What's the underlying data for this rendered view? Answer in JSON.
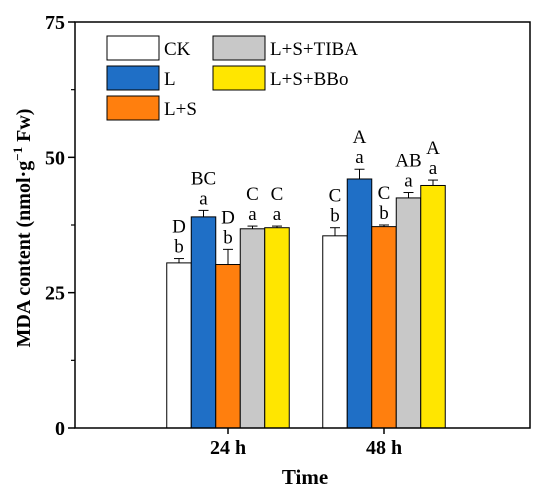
{
  "chart_data": {
    "type": "bar",
    "xlabel": "Time",
    "ylabel": "MDA content (nmol·g",
    "ylabel_sup": "−1",
    "ylabel_suffix": " Fw)",
    "ylim": [
      0,
      75
    ],
    "yticks": [
      0,
      25,
      50,
      75
    ],
    "categories": [
      "24 h",
      "48 h"
    ],
    "legend_position": "top-left",
    "series": [
      {
        "name": "CK",
        "color": "#ffffff",
        "values": [
          30.5,
          35.5
        ],
        "errors": [
          0.8,
          1.5
        ],
        "letters_lower": [
          "b",
          "b"
        ],
        "letters_upper": [
          "D",
          "C"
        ]
      },
      {
        "name": "L",
        "color": "#1f6fc6",
        "values": [
          39.0,
          46.0
        ],
        "errors": [
          1.2,
          1.8
        ],
        "letters_lower": [
          "a",
          "a"
        ],
        "letters_upper": [
          "BC",
          "A"
        ]
      },
      {
        "name": "L+S",
        "color": "#ff7f0e",
        "values": [
          30.2,
          37.2
        ],
        "errors": [
          2.8,
          0.3
        ],
        "letters_lower": [
          "b",
          "b"
        ],
        "letters_upper": [
          "D",
          "C"
        ]
      },
      {
        "name": "L+S+TIBA",
        "color": "#c8c8c8",
        "values": [
          36.8,
          42.5
        ],
        "errors": [
          0.5,
          1.0
        ],
        "letters_lower": [
          "a",
          "a"
        ],
        "letters_upper": [
          "C",
          "AB"
        ]
      },
      {
        "name": "L+S+BBo",
        "color": "#ffe600",
        "values": [
          37.0,
          44.8
        ],
        "errors": [
          0.3,
          1.0
        ],
        "letters_lower": [
          "a",
          "a"
        ],
        "letters_upper": [
          "C",
          "A"
        ]
      }
    ]
  }
}
